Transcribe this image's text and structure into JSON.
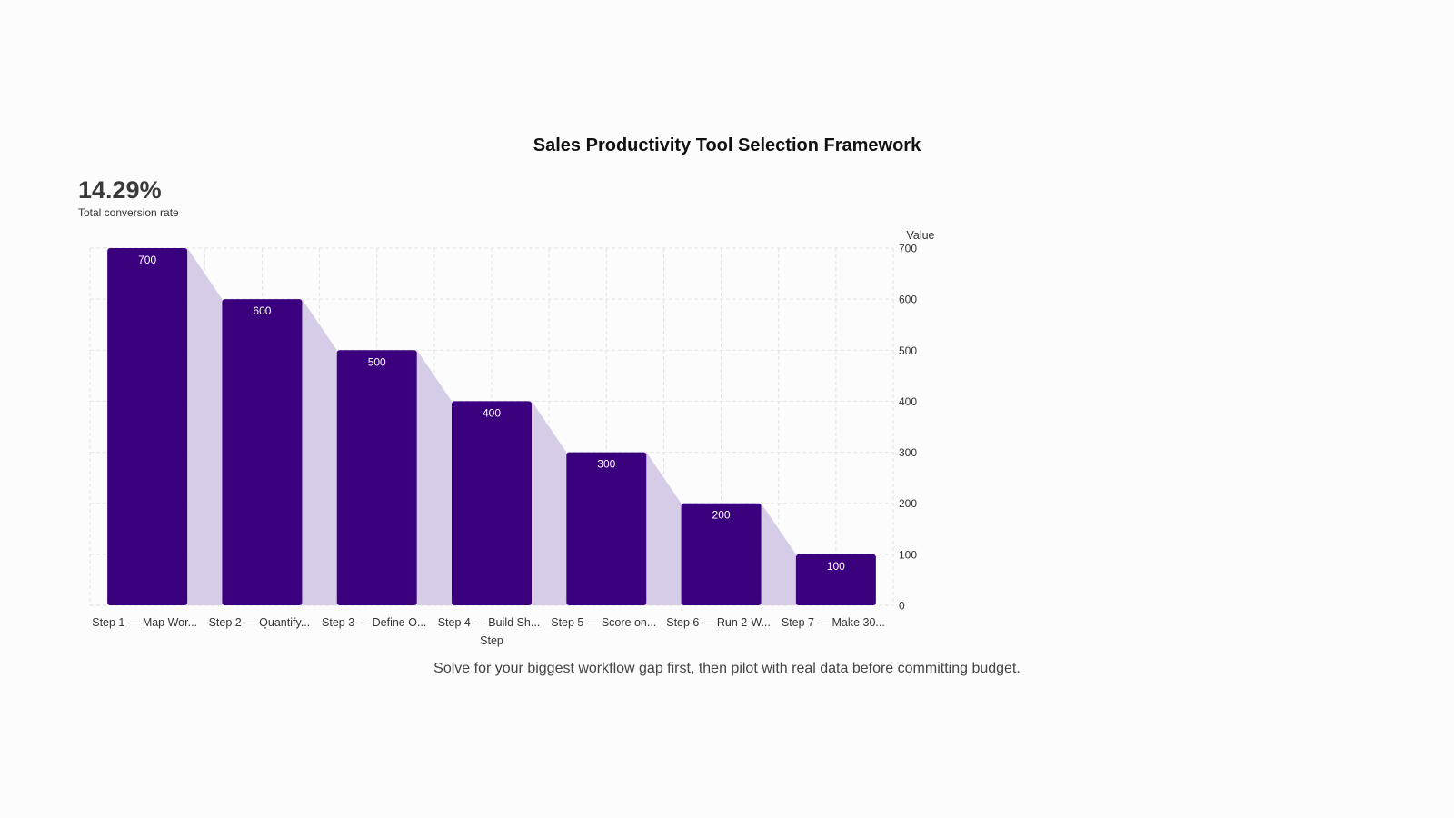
{
  "colors": {
    "bar": "#3a007d",
    "connector": "#d7cce8",
    "grid": "#e2e2e2",
    "bar_label": "#ffffff",
    "tick_label": "#333333"
  },
  "kpi": {
    "value": "14.29%",
    "label": "Total conversion rate"
  },
  "caption": "Solve for your biggest workflow gap first, then pilot with real data before committing budget.",
  "chart_data": {
    "type": "bar",
    "title": "Sales Productivity Tool Selection Framework",
    "xlabel": "Step",
    "ylabel": "Value",
    "categories": [
      "Step 1 — Map Wor...",
      "Step 2 — Quantify...",
      "Step 3 — Define O...",
      "Step 4 — Build Sh...",
      "Step 5 — Score on...",
      "Step 6 — Run 2-W...",
      "Step 7 — Make 30..."
    ],
    "values": [
      700,
      600,
      500,
      400,
      300,
      200,
      100
    ],
    "ylim": [
      0,
      700
    ],
    "yticks": [
      0,
      100,
      200,
      300,
      400,
      500,
      600,
      700
    ],
    "y_axis_position": "right",
    "grid": true,
    "legend": false
  }
}
